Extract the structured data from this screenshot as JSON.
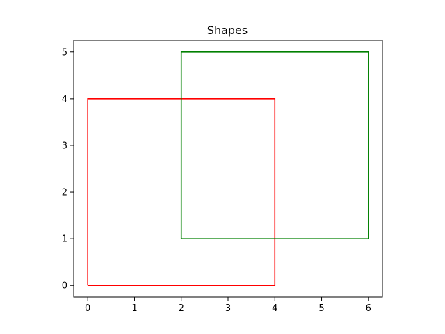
{
  "chart_data": {
    "type": "line",
    "title": "Shapes",
    "xlabel": "",
    "ylabel": "",
    "xlim": [
      -0.3,
      6.3
    ],
    "ylim": [
      -0.25,
      5.25
    ],
    "xticks": [
      0,
      1,
      2,
      3,
      4,
      5,
      6
    ],
    "yticks": [
      0,
      1,
      2,
      3,
      4,
      5
    ],
    "grid": false,
    "legend": false,
    "series": [
      {
        "color": "#ff0000",
        "x": [
          0,
          4,
          4,
          0,
          0
        ],
        "y": [
          0,
          0,
          4,
          4,
          0
        ]
      },
      {
        "color": "#008000",
        "x": [
          2,
          6,
          6,
          2,
          2
        ],
        "y": [
          1,
          1,
          5,
          5,
          1
        ]
      }
    ]
  }
}
